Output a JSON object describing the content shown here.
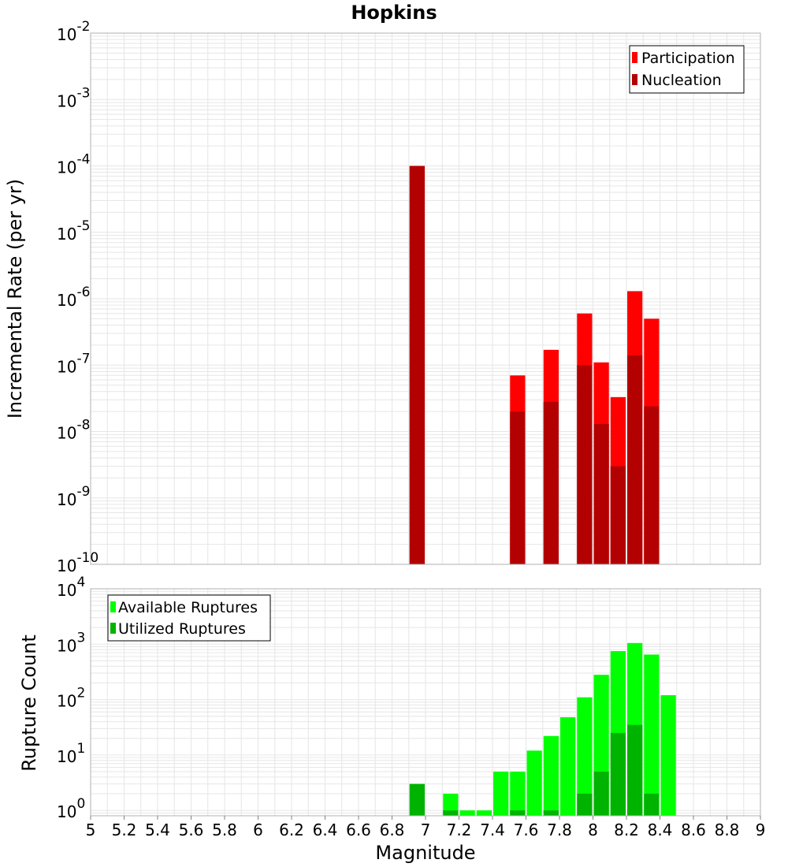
{
  "title": "Hopkins",
  "colors": {
    "participation": "#ff0000",
    "nucleation": "#b30000",
    "available": "#00ff00",
    "utilized": "#00b300",
    "grid": "#e6e6e6",
    "plot_border": "#b0b0b0"
  },
  "chart_data": [
    {
      "type": "bar",
      "name": "rate-panel",
      "ylabel": "Incremental Rate (per yr)",
      "xlabel": "",
      "yscale": "log",
      "xlim": [
        5,
        9
      ],
      "ylim": [
        1e-10,
        0.01
      ],
      "grid": true,
      "legend_position": "top-right",
      "y_tick_labels": [
        {
          "base": "10",
          "exp": "-10",
          "value": 1e-10
        },
        {
          "base": "10",
          "exp": "-9",
          "value": 1e-09
        },
        {
          "base": "10",
          "exp": "-8",
          "value": 1e-08
        },
        {
          "base": "10",
          "exp": "-7",
          "value": 1e-07
        },
        {
          "base": "10",
          "exp": "-6",
          "value": 1e-06
        },
        {
          "base": "10",
          "exp": "-5",
          "value": 1e-05
        },
        {
          "base": "10",
          "exp": "-4",
          "value": 0.0001
        },
        {
          "base": "10",
          "exp": "-3",
          "value": 0.001
        },
        {
          "base": "10",
          "exp": "-2",
          "value": 0.01
        }
      ],
      "series": [
        {
          "name": "Participation",
          "color": "#ff0000",
          "points": [
            {
              "x": 6.95,
              "y": 0.0001
            },
            {
              "x": 7.55,
              "y": 7e-08
            },
            {
              "x": 7.75,
              "y": 1.7e-07
            },
            {
              "x": 7.95,
              "y": 6e-07
            },
            {
              "x": 8.05,
              "y": 1.1e-07
            },
            {
              "x": 8.15,
              "y": 3.3e-08
            },
            {
              "x": 8.25,
              "y": 1.3e-06
            },
            {
              "x": 8.35,
              "y": 5e-07
            }
          ]
        },
        {
          "name": "Nucleation",
          "color": "#b30000",
          "points": [
            {
              "x": 6.95,
              "y": 0.0001
            },
            {
              "x": 7.55,
              "y": 2e-08
            },
            {
              "x": 7.75,
              "y": 2.8e-08
            },
            {
              "x": 7.95,
              "y": 1e-07
            },
            {
              "x": 8.05,
              "y": 1.3e-08
            },
            {
              "x": 8.15,
              "y": 3e-09
            },
            {
              "x": 8.25,
              "y": 1.4e-07
            },
            {
              "x": 8.35,
              "y": 2.4e-08
            }
          ]
        }
      ]
    },
    {
      "type": "bar",
      "name": "count-panel",
      "ylabel": "Rupture Count",
      "xlabel": "Magnitude",
      "yscale": "log",
      "xlim": [
        5,
        9
      ],
      "ylim": [
        0.8,
        10000
      ],
      "grid": true,
      "legend_position": "top-left",
      "x_ticks": [
        5,
        5.2,
        5.4,
        5.6,
        5.8,
        6,
        6.2,
        6.4,
        6.6,
        6.8,
        7,
        7.2,
        7.4,
        7.6,
        7.8,
        8,
        8.2,
        8.4,
        8.6,
        8.8,
        9
      ],
      "x_tick_labels": [
        "5",
        "5.2",
        "5.4",
        "5.6",
        "5.8",
        "6",
        "6.2",
        "6.4",
        "6.6",
        "6.8",
        "7",
        "7.2",
        "7.4",
        "7.6",
        "7.8",
        "8",
        "8.2",
        "8.4",
        "8.6",
        "8.8",
        "9"
      ],
      "y_tick_labels": [
        {
          "base": "10",
          "exp": "0",
          "value": 1
        },
        {
          "base": "10",
          "exp": "1",
          "value": 10
        },
        {
          "base": "10",
          "exp": "2",
          "value": 100
        },
        {
          "base": "10",
          "exp": "3",
          "value": 1000
        },
        {
          "base": "10",
          "exp": "4",
          "value": 10000
        }
      ],
      "series": [
        {
          "name": "Available Ruptures",
          "color": "#00ff00",
          "points": [
            {
              "x": 6.95,
              "y": 3
            },
            {
              "x": 7.15,
              "y": 2
            },
            {
              "x": 7.25,
              "y": 1
            },
            {
              "x": 7.35,
              "y": 1
            },
            {
              "x": 7.45,
              "y": 5
            },
            {
              "x": 7.55,
              "y": 5
            },
            {
              "x": 7.65,
              "y": 12
            },
            {
              "x": 7.75,
              "y": 22
            },
            {
              "x": 7.85,
              "y": 48
            },
            {
              "x": 7.95,
              "y": 110
            },
            {
              "x": 8.05,
              "y": 280
            },
            {
              "x": 8.15,
              "y": 750
            },
            {
              "x": 8.25,
              "y": 1050
            },
            {
              "x": 8.35,
              "y": 650
            },
            {
              "x": 8.45,
              "y": 120
            }
          ]
        },
        {
          "name": "Utilized Ruptures",
          "color": "#00b300",
          "points": [
            {
              "x": 6.95,
              "y": 3
            },
            {
              "x": 7.15,
              "y": 1
            },
            {
              "x": 7.55,
              "y": 1
            },
            {
              "x": 7.75,
              "y": 1
            },
            {
              "x": 7.95,
              "y": 2
            },
            {
              "x": 8.05,
              "y": 5
            },
            {
              "x": 8.15,
              "y": 25
            },
            {
              "x": 8.25,
              "y": 35
            },
            {
              "x": 8.35,
              "y": 2
            }
          ]
        }
      ]
    }
  ]
}
